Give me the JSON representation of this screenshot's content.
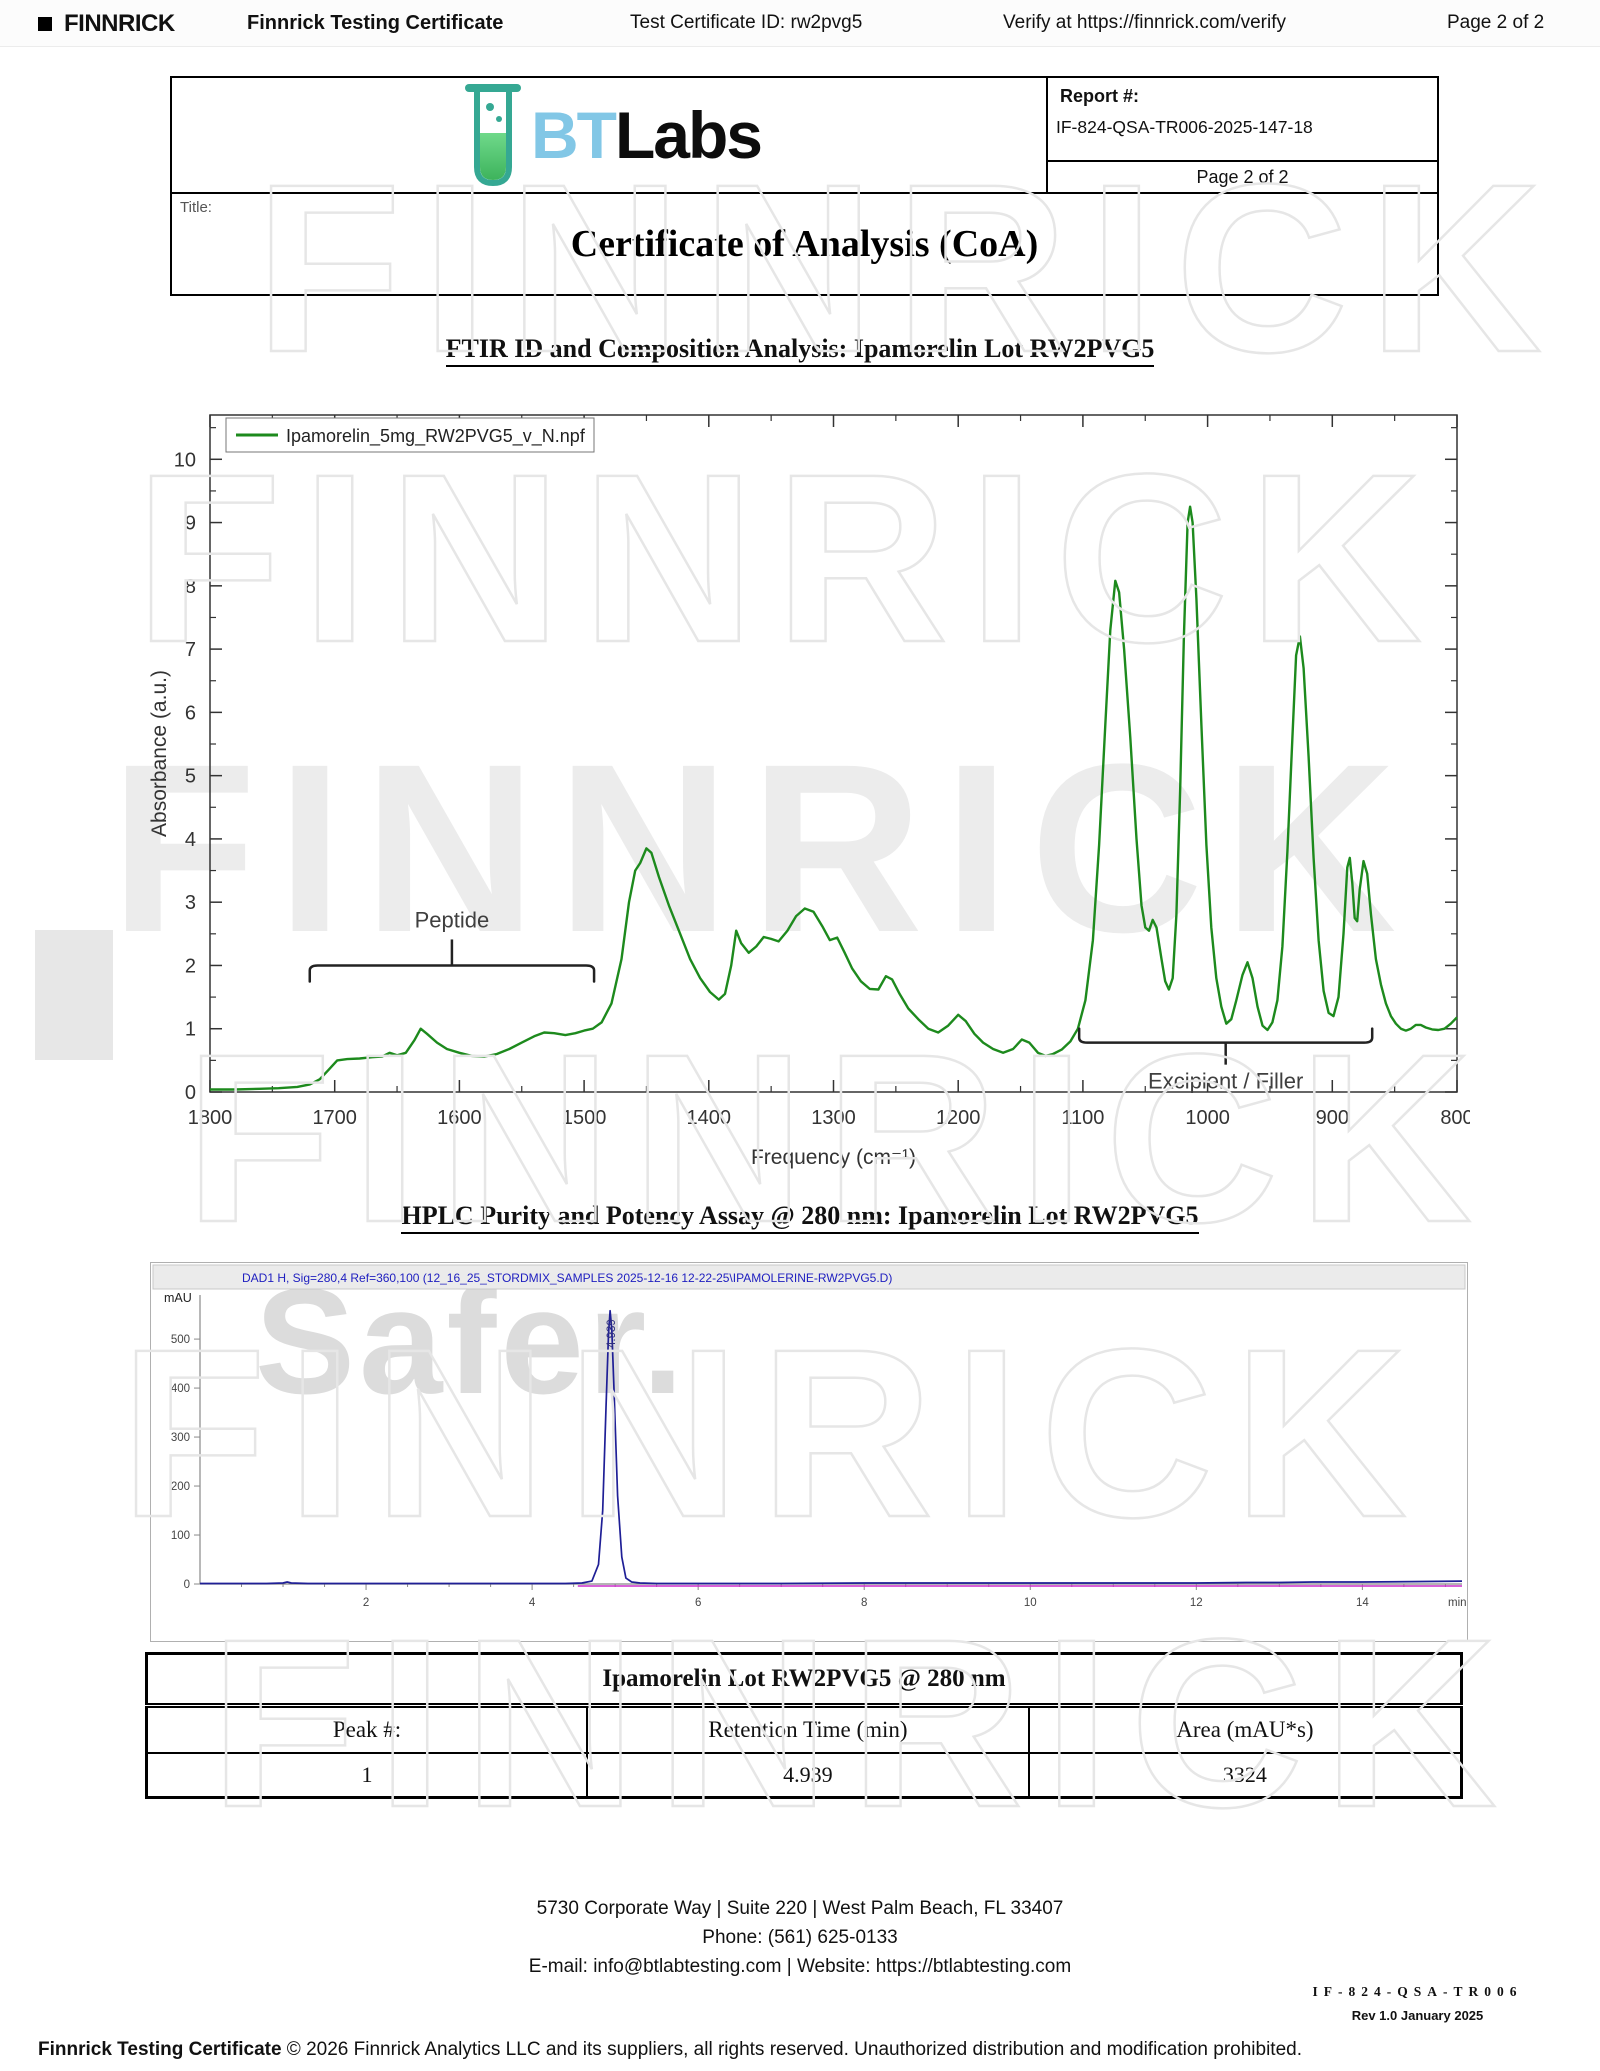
{
  "top_bar": {
    "logo": "FINNRICK",
    "title": "Finnrick Testing Certificate",
    "cert_id": "Test Certificate ID: rw2pvg5",
    "verify": "Verify at https://finnrick.com/verify",
    "page": "Page 2 of 2"
  },
  "header": {
    "logo_bt": "BT",
    "logo_labs": "Labs",
    "report_label": "Report #:",
    "report_number": "IF-824-QSA-TR006-2025-147-18",
    "page": "Page 2 of 2",
    "title_label": "Title:",
    "title": "Certificate of Analysis (CoA)"
  },
  "ftir": {
    "section_title": "FTIR ID and Composition Analysis: Ipamorelin Lot RW2PVG5"
  },
  "hplc": {
    "section_title": "HPLC Purity and Potency Assay @ 280 nm: Ipamorelin Lot RW2PVG5"
  },
  "chart_data": [
    {
      "type": "line",
      "title": "FTIR ID and Composition Analysis: Ipamorelin Lot RW2PVG5",
      "xlabel": "Frequency (cm⁻¹)",
      "ylabel": "Absorbance (a.u.)",
      "x_range": [
        1800,
        800
      ],
      "y_range": [
        0,
        10.7
      ],
      "x_ticks": [
        1800,
        1700,
        1600,
        1500,
        1400,
        1300,
        1200,
        1100,
        1000,
        900,
        800
      ],
      "y_ticks": [
        0,
        1,
        2,
        3,
        4,
        5,
        6,
        7,
        8,
        9,
        10
      ],
      "legend": "Ipamorelin_5mg_RW2PVG5_v_N.npf",
      "line_color": "#1d8a1d",
      "grid": false,
      "annotations": [
        {
          "label": "Peptide",
          "from": 1720,
          "to": 1492,
          "y": 2.0,
          "dir": "up"
        },
        {
          "label": "Excipient / Filler",
          "from": 1103,
          "to": 868,
          "y": 0.78,
          "dir": "down"
        }
      ],
      "points": [
        [
          1800,
          0.04
        ],
        [
          1780,
          0.04
        ],
        [
          1760,
          0.05
        ],
        [
          1745,
          0.06
        ],
        [
          1730,
          0.08
        ],
        [
          1720,
          0.12
        ],
        [
          1712,
          0.2
        ],
        [
          1705,
          0.35
        ],
        [
          1698,
          0.5
        ],
        [
          1690,
          0.52
        ],
        [
          1680,
          0.53
        ],
        [
          1670,
          0.55
        ],
        [
          1662,
          0.56
        ],
        [
          1656,
          0.62
        ],
        [
          1650,
          0.58
        ],
        [
          1643,
          0.62
        ],
        [
          1636,
          0.82
        ],
        [
          1631,
          1.0
        ],
        [
          1626,
          0.92
        ],
        [
          1618,
          0.78
        ],
        [
          1610,
          0.68
        ],
        [
          1600,
          0.62
        ],
        [
          1590,
          0.57
        ],
        [
          1580,
          0.56
        ],
        [
          1570,
          0.6
        ],
        [
          1560,
          0.68
        ],
        [
          1550,
          0.78
        ],
        [
          1540,
          0.88
        ],
        [
          1532,
          0.94
        ],
        [
          1524,
          0.93
        ],
        [
          1515,
          0.9
        ],
        [
          1507,
          0.93
        ],
        [
          1500,
          0.97
        ],
        [
          1493,
          1.0
        ],
        [
          1486,
          1.1
        ],
        [
          1478,
          1.4
        ],
        [
          1470,
          2.1
        ],
        [
          1464,
          3.0
        ],
        [
          1459,
          3.5
        ],
        [
          1455,
          3.62
        ],
        [
          1450,
          3.85
        ],
        [
          1446,
          3.78
        ],
        [
          1440,
          3.4
        ],
        [
          1432,
          2.95
        ],
        [
          1424,
          2.55
        ],
        [
          1415,
          2.1
        ],
        [
          1407,
          1.8
        ],
        [
          1399,
          1.58
        ],
        [
          1392,
          1.46
        ],
        [
          1387,
          1.55
        ],
        [
          1382,
          2.0
        ],
        [
          1378,
          2.55
        ],
        [
          1374,
          2.35
        ],
        [
          1368,
          2.2
        ],
        [
          1362,
          2.3
        ],
        [
          1356,
          2.45
        ],
        [
          1350,
          2.42
        ],
        [
          1344,
          2.38
        ],
        [
          1337,
          2.55
        ],
        [
          1330,
          2.78
        ],
        [
          1323,
          2.9
        ],
        [
          1316,
          2.85
        ],
        [
          1309,
          2.62
        ],
        [
          1303,
          2.4
        ],
        [
          1297,
          2.44
        ],
        [
          1291,
          2.2
        ],
        [
          1285,
          1.95
        ],
        [
          1278,
          1.75
        ],
        [
          1271,
          1.63
        ],
        [
          1264,
          1.62
        ],
        [
          1258,
          1.83
        ],
        [
          1253,
          1.78
        ],
        [
          1247,
          1.55
        ],
        [
          1240,
          1.32
        ],
        [
          1232,
          1.15
        ],
        [
          1224,
          1.0
        ],
        [
          1216,
          0.94
        ],
        [
          1208,
          1.05
        ],
        [
          1200,
          1.22
        ],
        [
          1194,
          1.12
        ],
        [
          1187,
          0.92
        ],
        [
          1180,
          0.78
        ],
        [
          1172,
          0.68
        ],
        [
          1164,
          0.62
        ],
        [
          1156,
          0.68
        ],
        [
          1149,
          0.83
        ],
        [
          1143,
          0.78
        ],
        [
          1136,
          0.62
        ],
        [
          1130,
          0.57
        ],
        [
          1124,
          0.6
        ],
        [
          1117,
          0.67
        ],
        [
          1110,
          0.8
        ],
        [
          1104,
          1.0
        ],
        [
          1098,
          1.45
        ],
        [
          1092,
          2.4
        ],
        [
          1087,
          3.9
        ],
        [
          1082,
          5.8
        ],
        [
          1078,
          7.3
        ],
        [
          1074,
          8.08
        ],
        [
          1071,
          7.9
        ],
        [
          1067,
          7.0
        ],
        [
          1062,
          5.6
        ],
        [
          1057,
          4.0
        ],
        [
          1053,
          2.95
        ],
        [
          1050,
          2.6
        ],
        [
          1047,
          2.55
        ],
        [
          1044,
          2.72
        ],
        [
          1041,
          2.6
        ],
        [
          1037,
          2.1
        ],
        [
          1034,
          1.75
        ],
        [
          1031,
          1.62
        ],
        [
          1028,
          1.8
        ],
        [
          1025,
          2.8
        ],
        [
          1022,
          4.8
        ],
        [
          1019,
          7.2
        ],
        [
          1016,
          9.0
        ],
        [
          1014,
          9.25
        ],
        [
          1012,
          9.0
        ],
        [
          1009,
          7.8
        ],
        [
          1005,
          5.8
        ],
        [
          1001,
          3.9
        ],
        [
          997,
          2.6
        ],
        [
          993,
          1.8
        ],
        [
          989,
          1.35
        ],
        [
          985,
          1.08
        ],
        [
          981,
          1.15
        ],
        [
          977,
          1.45
        ],
        [
          972,
          1.85
        ],
        [
          968,
          2.05
        ],
        [
          964,
          1.8
        ],
        [
          960,
          1.35
        ],
        [
          956,
          1.05
        ],
        [
          952,
          0.98
        ],
        [
          948,
          1.1
        ],
        [
          944,
          1.45
        ],
        [
          940,
          2.3
        ],
        [
          936,
          3.8
        ],
        [
          932,
          5.6
        ],
        [
          929,
          6.9
        ],
        [
          926,
          7.2
        ],
        [
          923,
          6.7
        ],
        [
          919,
          5.3
        ],
        [
          915,
          3.7
        ],
        [
          911,
          2.4
        ],
        [
          907,
          1.6
        ],
        [
          903,
          1.25
        ],
        [
          899,
          1.2
        ],
        [
          895,
          1.5
        ],
        [
          891,
          2.5
        ],
        [
          888,
          3.55
        ],
        [
          886,
          3.7
        ],
        [
          884,
          3.3
        ],
        [
          882,
          2.75
        ],
        [
          880,
          2.7
        ],
        [
          878,
          3.2
        ],
        [
          875,
          3.65
        ],
        [
          872,
          3.45
        ],
        [
          869,
          2.8
        ],
        [
          865,
          2.1
        ],
        [
          861,
          1.7
        ],
        [
          857,
          1.4
        ],
        [
          853,
          1.2
        ],
        [
          849,
          1.08
        ],
        [
          845,
          1.0
        ],
        [
          841,
          0.97
        ],
        [
          837,
          1.0
        ],
        [
          833,
          1.06
        ],
        [
          829,
          1.06
        ],
        [
          825,
          1.02
        ],
        [
          820,
          0.99
        ],
        [
          815,
          0.98
        ],
        [
          810,
          1.0
        ],
        [
          805,
          1.08
        ],
        [
          800,
          1.18
        ]
      ]
    },
    {
      "type": "line",
      "header_line": "DAD1 H, Sig=280,4 Ref=360,100 (12_16_25_STORDMIX_SAMPLES 2025-12-16 12-22-25\\IPAMOLERINE-RW2PVG5.D)",
      "xlabel": "min",
      "ylabel": "mAU",
      "x_range": [
        0,
        15.2
      ],
      "y_range": [
        0,
        590
      ],
      "x_ticks": [
        2,
        4,
        6,
        8,
        10,
        12,
        14
      ],
      "y_ticks": [
        0,
        100,
        200,
        300,
        400,
        500
      ],
      "line_color": "#1f1f96",
      "baseline2_color": "#cc2fcc",
      "peak": {
        "number": 1,
        "rt": 4.939,
        "label": "4.939",
        "height_mAU": 558,
        "area": 3324
      },
      "points": [
        [
          0,
          1
        ],
        [
          0.3,
          1
        ],
        [
          0.8,
          1
        ],
        [
          1.0,
          2
        ],
        [
          1.05,
          4
        ],
        [
          1.1,
          2
        ],
        [
          1.3,
          1
        ],
        [
          2,
          1
        ],
        [
          2.5,
          1
        ],
        [
          3,
          1
        ],
        [
          3.5,
          1
        ],
        [
          4,
          1
        ],
        [
          4.4,
          1
        ],
        [
          4.6,
          2
        ],
        [
          4.72,
          6
        ],
        [
          4.8,
          40
        ],
        [
          4.85,
          150
        ],
        [
          4.89,
          360
        ],
        [
          4.92,
          510
        ],
        [
          4.939,
          558
        ],
        [
          4.96,
          520
        ],
        [
          4.99,
          380
        ],
        [
          5.03,
          180
        ],
        [
          5.08,
          55
        ],
        [
          5.13,
          12
        ],
        [
          5.2,
          4
        ],
        [
          5.3,
          2
        ],
        [
          5.5,
          1
        ],
        [
          6,
          1
        ],
        [
          7,
          1
        ],
        [
          8,
          2
        ],
        [
          9,
          2
        ],
        [
          10,
          2
        ],
        [
          11,
          2
        ],
        [
          12,
          2
        ],
        [
          12.6,
          3
        ],
        [
          13,
          3
        ],
        [
          13.4,
          4
        ],
        [
          14,
          4
        ],
        [
          14.6,
          5
        ],
        [
          15.2,
          6
        ]
      ]
    }
  ],
  "table": {
    "title": "Ipamorelin Lot RW2PVG5 @ 280 nm",
    "headers": [
      "Peak #:",
      "Retention Time (min)",
      "Area (mAU*s)"
    ],
    "rows": [
      [
        "1",
        "4.939",
        "3324"
      ]
    ]
  },
  "footer": {
    "address": "5730 Corporate Way | Suite 220 | West Palm Beach, FL 33407",
    "phone": "Phone: (561) 625-0133",
    "contact": "E-mail: info@btlabtesting.com | Website: https://btlabtesting.com",
    "doc_id": "IF-824-QSA-TR006",
    "revision": "Rev 1.0 January 2025"
  },
  "bottom_bar": {
    "bold": "Finnrick Testing Certificate",
    "text": " © 2026 Finnrick Analytics LLC and its suppliers, all rights reserved. Unauthorized distribution and modification prohibited."
  },
  "watermark": {
    "text": "FINNRICK",
    "safer": "Safer."
  }
}
